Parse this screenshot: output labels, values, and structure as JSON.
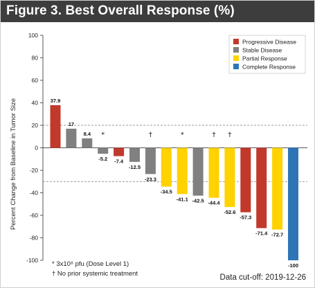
{
  "header": {
    "title": "Figure 3. Best Overall Response (%)"
  },
  "chart_data": {
    "type": "bar",
    "title": "Figure 3. Best Overall Response (%)",
    "ylabel": "Percent Change from Baseline in Tumor Size",
    "xlabel": "",
    "ylim": [
      -100,
      100
    ],
    "yticks": [
      100,
      80,
      60,
      40,
      20,
      0,
      -20,
      -40,
      -60,
      -80,
      -100
    ],
    "reference_lines": [
      20,
      -30
    ],
    "grid": false,
    "legend_position": "top-right",
    "legend": [
      {
        "key": "PD",
        "name": "Progressive Disease",
        "color": "#c0392b"
      },
      {
        "key": "SD",
        "name": "Stable Disease",
        "color": "#808080"
      },
      {
        "key": "PR",
        "name": "Partial Response",
        "color": "#ffd200"
      },
      {
        "key": "CR",
        "name": "Complete Response",
        "color": "#2e75b6"
      }
    ],
    "bars": [
      {
        "value": 37.9,
        "label": "37.9",
        "category": "PD",
        "marker": ""
      },
      {
        "value": 17,
        "label": "17",
        "category": "SD",
        "marker": ""
      },
      {
        "value": 8.4,
        "label": "8.4",
        "category": "SD",
        "marker": ""
      },
      {
        "value": -5.2,
        "label": "-5.2",
        "category": "SD",
        "marker": "*"
      },
      {
        "value": -7.4,
        "label": "-7.4",
        "category": "PD",
        "marker": ""
      },
      {
        "value": -12.5,
        "label": "-12.5",
        "category": "SD",
        "marker": ""
      },
      {
        "value": -23.3,
        "label": "-23.3",
        "category": "SD",
        "marker": "†"
      },
      {
        "value": -34.5,
        "label": "-34.5",
        "category": "PR",
        "marker": ""
      },
      {
        "value": -41.1,
        "label": "-41.1",
        "category": "PR",
        "marker": "*"
      },
      {
        "value": -42.5,
        "label": "-42.5",
        "category": "SD",
        "marker": ""
      },
      {
        "value": -44.4,
        "label": "-44.4",
        "category": "PR",
        "marker": "†"
      },
      {
        "value": -52.6,
        "label": "-52.6",
        "category": "PR",
        "marker": "†"
      },
      {
        "value": -57.3,
        "label": "-57.3",
        "category": "PD",
        "marker": ""
      },
      {
        "value": -71.4,
        "label": "-71.4",
        "category": "PD",
        "marker": ""
      },
      {
        "value": -72.7,
        "label": "-72.7",
        "category": "PR",
        "marker": ""
      },
      {
        "value": -100,
        "label": "-100",
        "category": "CR",
        "marker": ""
      }
    ],
    "footnotes": {
      "star": "*  3x10⁸ pfu (Dose Level 1)",
      "dagger": "†  No prior systemic treatment"
    },
    "cutoff": "Data cut-off: 2019-12-26"
  }
}
